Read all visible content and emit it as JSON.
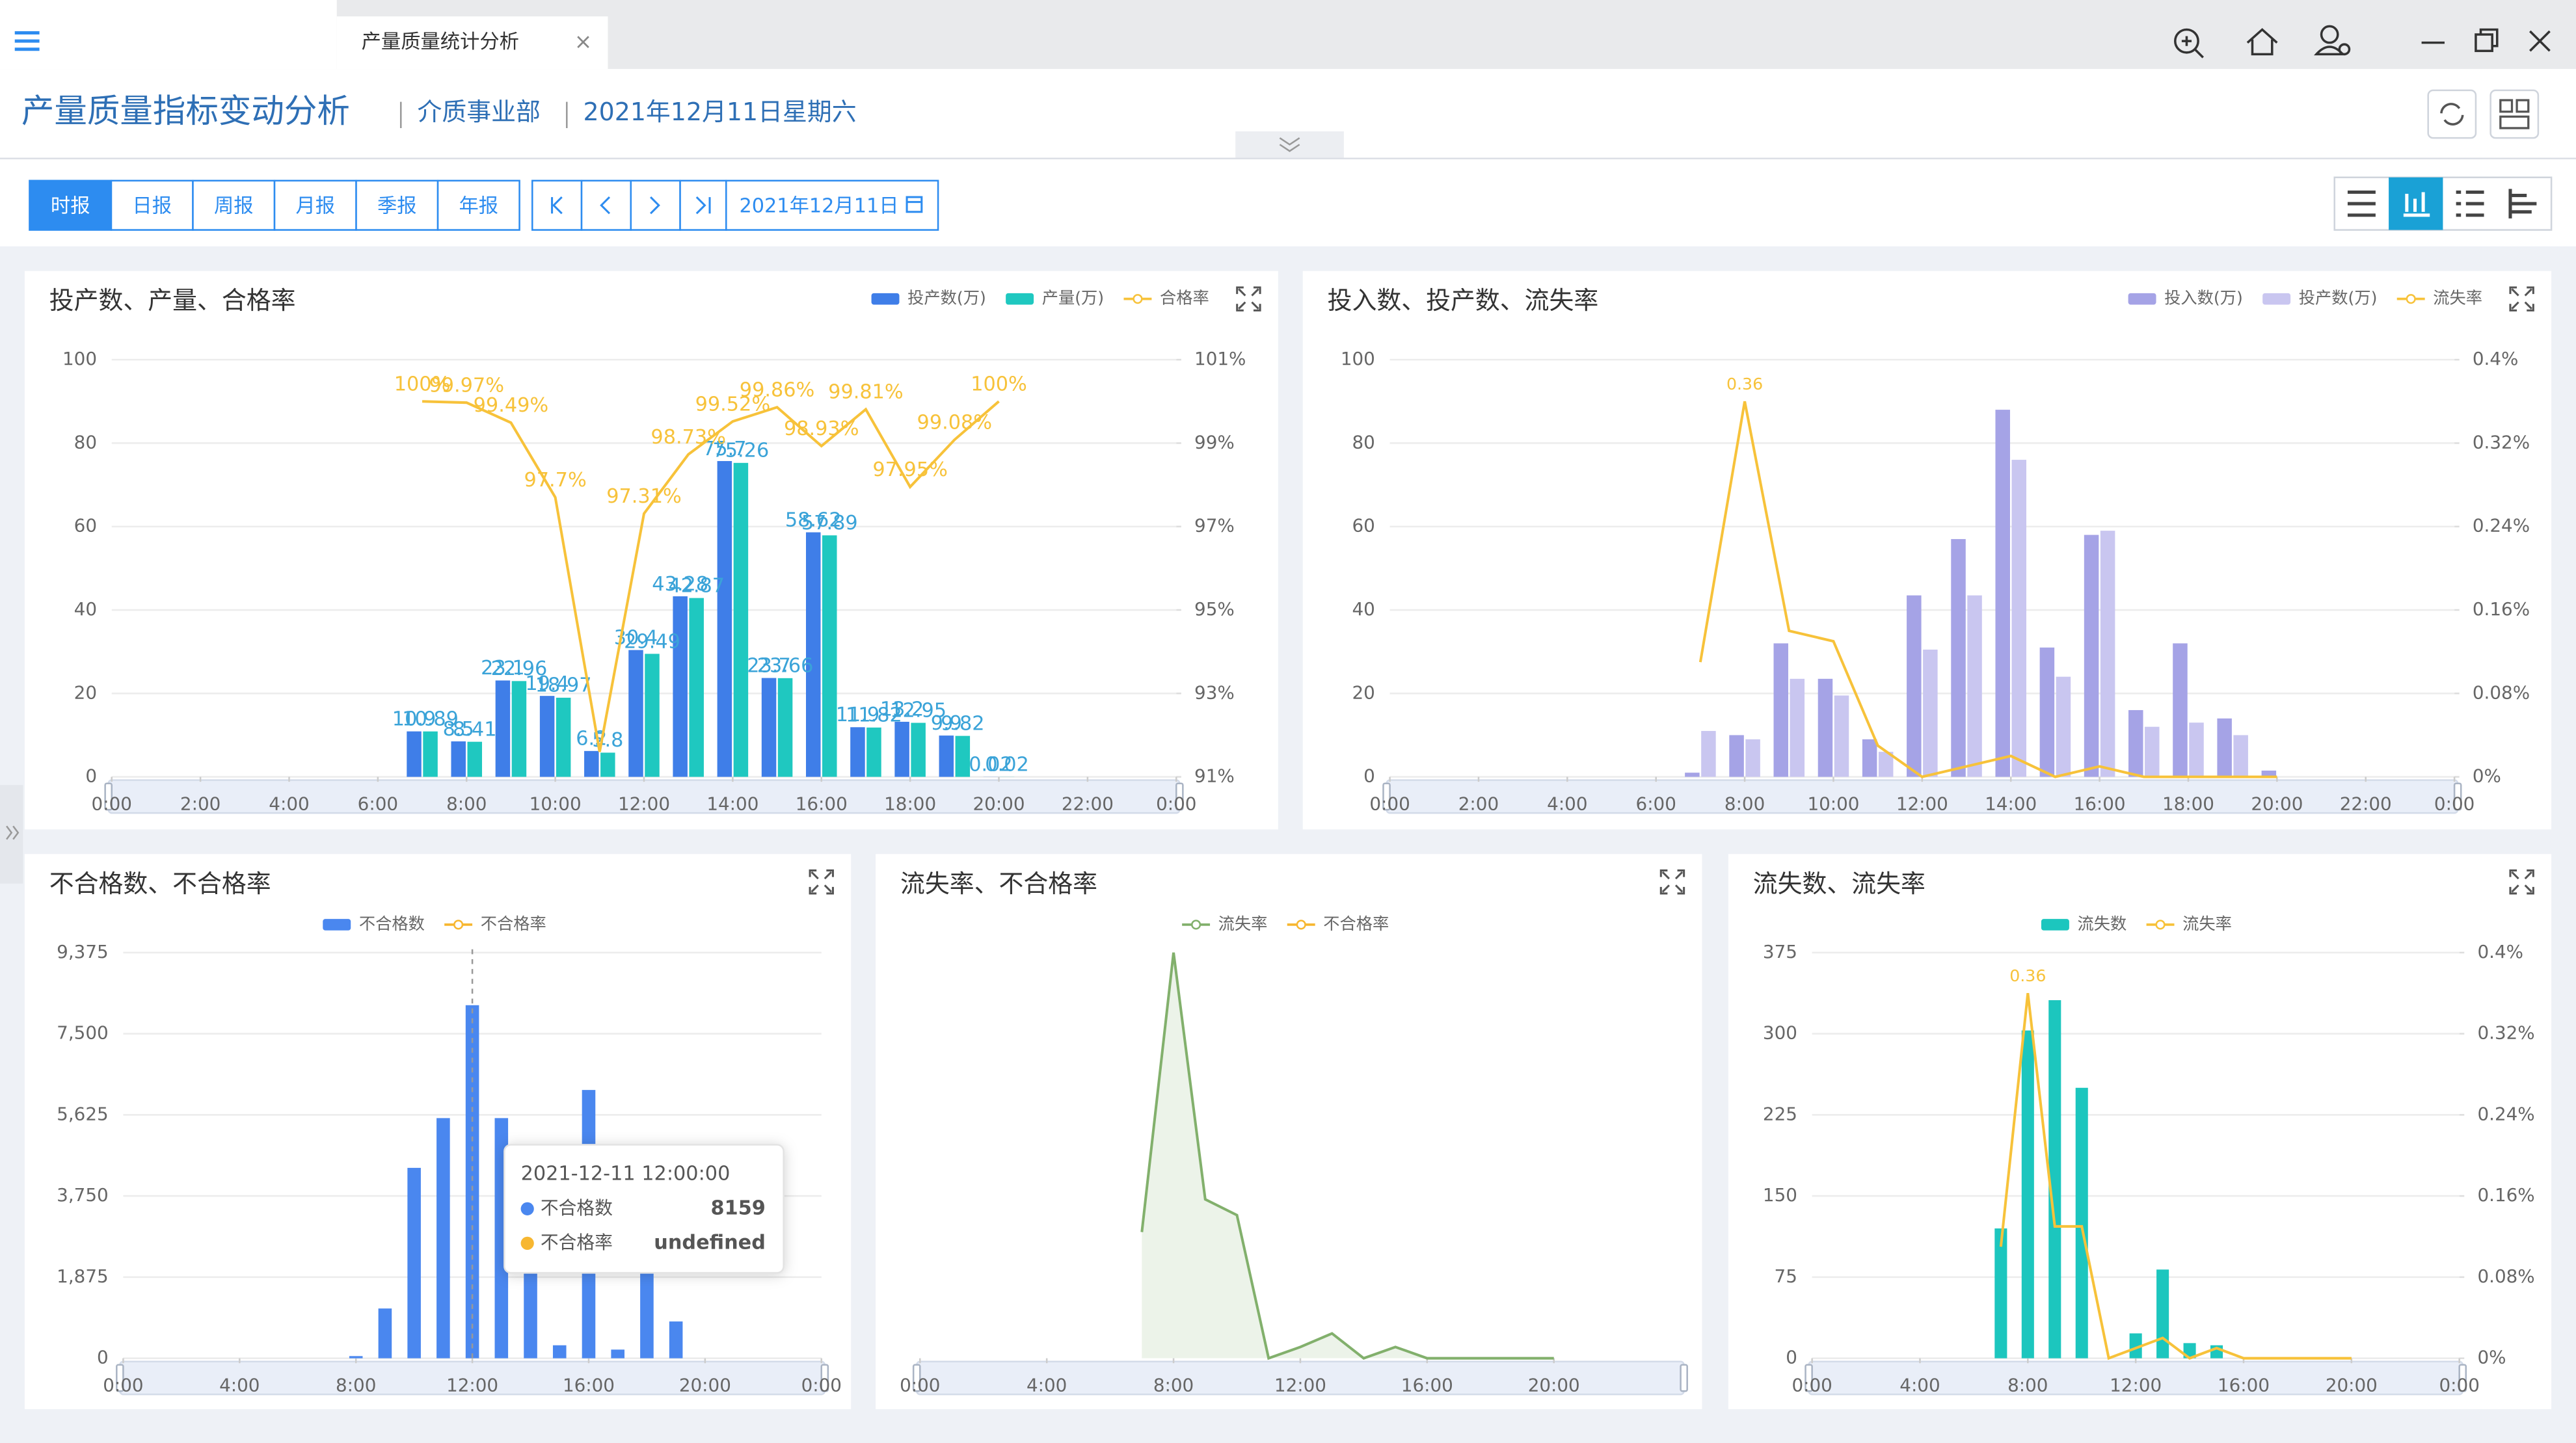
{
  "tab": {
    "title": "产量质量统计分析",
    "close": "×"
  },
  "header": {
    "title": "产量质量指标变动分析",
    "department": "介质事业部",
    "date": "2021年12月11日星期六"
  },
  "toolbar": {
    "periods": [
      "时报",
      "日报",
      "周报",
      "月报",
      "季报",
      "年报"
    ],
    "date": "2021年12月11日"
  },
  "chart_data": [
    {
      "type": "bar",
      "title": "投产数、产量、合格率",
      "legend": "top-right",
      "categories": [
        "0:00",
        null,
        "2:00",
        null,
        "4:00",
        null,
        "6:00",
        null,
        "8:00",
        null,
        "10:00",
        null,
        "12:00",
        null,
        "14:00",
        null,
        "16:00",
        null,
        "18:00",
        null,
        "20:00",
        null,
        "22:00",
        null,
        "0:00"
      ],
      "ylim": [
        0,
        100
      ],
      "yticks": [
        0,
        20,
        40,
        60,
        80,
        100
      ],
      "y2lim": [
        91,
        101
      ],
      "y2ticks": [
        {
          "value": 91,
          "label": "91%"
        },
        {
          "value": 93,
          "label": "93%"
        },
        {
          "value": 95,
          "label": "95%"
        },
        {
          "value": 97,
          "label": "97%"
        },
        {
          "value": 99,
          "label": "99%"
        },
        {
          "value": 101,
          "label": "101%"
        }
      ],
      "grid": true,
      "series": [
        {
          "name": "投产数(万)",
          "type": "bar",
          "color": "#3f7ee8",
          "labels": true,
          "values": [
            null,
            null,
            null,
            null,
            null,
            null,
            null,
            10.9,
            8.5,
            23.1,
            19.4,
            6.2,
            30.4,
            43.28,
            75.7,
            23.7,
            58.62,
            11.9,
            13.2,
            9.9,
            0.02,
            null,
            null,
            null,
            null
          ]
        },
        {
          "name": "产量(万)",
          "type": "bar",
          "color": "#1fc8c0",
          "labels": true,
          "values": [
            null,
            null,
            null,
            null,
            null,
            null,
            null,
            10.89,
            8.41,
            22.96,
            18.97,
            5.8,
            29.49,
            42.87,
            75.26,
            23.66,
            57.89,
            11.82,
            12.95,
            9.82,
            0.02,
            null,
            null,
            null,
            null
          ]
        },
        {
          "name": "合格率",
          "type": "line",
          "axis": "y2",
          "color": "#f7c23a",
          "values": [
            null,
            null,
            null,
            null,
            null,
            null,
            null,
            100,
            99.97,
            99.49,
            97.7,
            91.6,
            97.31,
            98.73,
            99.52,
            99.86,
            98.93,
            99.81,
            97.95,
            99.08,
            100,
            null,
            null,
            null,
            null
          ],
          "value_labels": [
            null,
            null,
            null,
            null,
            null,
            null,
            null,
            "100%",
            "99.97%",
            "99.49%",
            "97.7%",
            null,
            "97.31%",
            "98.73%",
            "99.52%",
            "99.86%",
            "98.93%",
            "99.81%",
            "97.95%",
            "99.08%",
            "100%",
            null,
            null,
            null,
            null
          ]
        }
      ]
    },
    {
      "type": "bar",
      "title": "投入数、投产数、流失率",
      "legend": "top-right",
      "categories": [
        "0:00",
        null,
        "2:00",
        null,
        "4:00",
        null,
        "6:00",
        null,
        "8:00",
        null,
        "10:00",
        null,
        "12:00",
        null,
        "14:00",
        null,
        "16:00",
        null,
        "18:00",
        null,
        "20:00",
        null,
        "22:00",
        null,
        "0:00"
      ],
      "ylim": [
        0,
        100
      ],
      "yticks": [
        0,
        20,
        40,
        60,
        80,
        100
      ],
      "y2lim": [
        0,
        0.4
      ],
      "y2ticks": [
        {
          "value": 0,
          "label": "0%"
        },
        {
          "value": 0.08,
          "label": "0.08%"
        },
        {
          "value": 0.16,
          "label": "0.16%"
        },
        {
          "value": 0.24,
          "label": "0.24%"
        },
        {
          "value": 0.32,
          "label": "0.32%"
        },
        {
          "value": 0.4,
          "label": "0.4%"
        }
      ],
      "grid": true,
      "series": [
        {
          "name": "投入数(万)",
          "type": "bar",
          "color": "#a5a3e6",
          "values": [
            null,
            null,
            null,
            null,
            null,
            null,
            null,
            1,
            10,
            32,
            23.5,
            9,
            43.5,
            57,
            88,
            31,
            58,
            16,
            32,
            14,
            1.5,
            null,
            null,
            null,
            null
          ]
        },
        {
          "name": "投产数(万)",
          "type": "bar",
          "color": "#c9c6f0",
          "values": [
            null,
            null,
            null,
            null,
            null,
            null,
            null,
            11,
            9,
            23.5,
            19.5,
            6,
            30.5,
            43.5,
            76,
            24,
            59,
            12,
            13,
            10,
            0,
            null,
            null,
            null,
            null
          ]
        },
        {
          "name": "流失率",
          "type": "line",
          "axis": "y2",
          "color": "#f7c23a",
          "values": [
            null,
            null,
            null,
            null,
            null,
            null,
            null,
            0.11,
            0.36,
            0.14,
            0.13,
            0.03,
            0,
            0.01,
            0.02,
            0,
            0.01,
            0,
            0,
            0,
            0,
            null,
            null,
            null,
            null
          ],
          "value_labels": [
            null,
            null,
            null,
            null,
            null,
            null,
            null,
            null,
            "0.36",
            null,
            null,
            null,
            null,
            null,
            null,
            null,
            null,
            null,
            null,
            null,
            null,
            null,
            null,
            null,
            null
          ]
        }
      ]
    },
    {
      "type": "bar",
      "title": "不合格数、不合格率",
      "legend": "top-center",
      "categories": [
        "0:00",
        null,
        null,
        null,
        "4:00",
        null,
        null,
        null,
        "8:00",
        null,
        null,
        null,
        "12:00",
        null,
        null,
        null,
        "16:00",
        null,
        null,
        null,
        "20:00",
        null,
        null,
        null,
        "0:00"
      ],
      "ylim": [
        0,
        9375
      ],
      "yticks": [
        0,
        {
          "value": 1875,
          "label": "1,875"
        },
        {
          "value": 3750,
          "label": "3,750"
        },
        {
          "value": 5625,
          "label": "5,625"
        },
        {
          "value": 7500,
          "label": "7,500"
        },
        {
          "value": 9375,
          "label": "9,375"
        }
      ],
      "grid": true,
      "series": [
        {
          "name": "不合格数",
          "type": "bar",
          "color": "#4a87ef",
          "values": [
            null,
            null,
            null,
            null,
            null,
            null,
            null,
            null,
            50,
            1150,
            4400,
            5550,
            8159,
            5550,
            3100,
            300,
            6200,
            200,
            3100,
            850,
            null,
            null,
            null,
            null,
            null
          ]
        },
        {
          "name": "不合格率",
          "type": "line",
          "color": "#f7b731",
          "values": [
            null,
            null,
            null,
            null,
            null,
            null,
            null,
            null,
            null,
            null,
            null,
            null,
            null,
            null,
            null,
            null,
            null,
            null,
            null,
            null,
            null,
            null,
            null,
            null,
            null
          ]
        }
      ],
      "tooltip": {
        "title": "2021-12-11 12:00:00",
        "missing": "undefined"
      }
    },
    {
      "type": "line",
      "title": "流失率、不合格率",
      "legend": "top-center",
      "categories": [
        "0:00",
        null,
        null,
        null,
        "4:00",
        null,
        null,
        null,
        "8:00",
        null,
        null,
        null,
        "12:00",
        null,
        null,
        null,
        "16:00",
        null,
        null,
        null,
        "20:00",
        null,
        null,
        null,
        null
      ],
      "ylim": [
        0,
        0.36
      ],
      "series": [
        {
          "name": "流失率",
          "type": "line",
          "area": true,
          "color": "#82b06c",
          "values": [
            null,
            null,
            null,
            null,
            null,
            null,
            null,
            0.112,
            0.36,
            0.141,
            0.127,
            0,
            0.01,
            0.022,
            0,
            0.01,
            0,
            0,
            0,
            0,
            0,
            null,
            null,
            null,
            null
          ]
        },
        {
          "name": "不合格率",
          "type": "line",
          "color": "#f7b731",
          "values": [
            null,
            null,
            null,
            null,
            null,
            null,
            null,
            null,
            null,
            null,
            null,
            null,
            null,
            null,
            null,
            null,
            null,
            null,
            null,
            null,
            null,
            null,
            null,
            null,
            null
          ]
        }
      ]
    },
    {
      "type": "bar",
      "title": "流失数、流失率",
      "legend": "top-center",
      "categories": [
        "0:00",
        null,
        null,
        null,
        "4:00",
        null,
        null,
        null,
        "8:00",
        null,
        null,
        null,
        "12:00",
        null,
        null,
        null,
        "16:00",
        null,
        null,
        null,
        "20:00",
        null,
        null,
        null,
        "0:00"
      ],
      "ylim": [
        0,
        375
      ],
      "yticks": [
        0,
        75,
        150,
        225,
        300,
        375
      ],
      "y2lim": [
        0,
        0.4
      ],
      "y2ticks": [
        {
          "value": 0,
          "label": "0%"
        },
        {
          "value": 0.08,
          "label": "0.08%"
        },
        {
          "value": 0.16,
          "label": "0.16%"
        },
        {
          "value": 0.24,
          "label": "0.24%"
        },
        {
          "value": 0.32,
          "label": "0.32%"
        },
        {
          "value": 0.4,
          "label": "0.4%"
        }
      ],
      "grid": true,
      "series": [
        {
          "name": "流失数",
          "type": "bar",
          "color": "#1cc6be",
          "values": [
            null,
            null,
            null,
            null,
            null,
            null,
            null,
            120,
            303,
            331,
            250,
            null,
            23,
            82,
            14,
            12,
            null,
            null,
            null,
            null,
            null,
            null,
            null,
            null,
            null
          ]
        },
        {
          "name": "流失率",
          "type": "line",
          "axis": "y2",
          "color": "#f7c23a",
          "values": [
            null,
            null,
            null,
            null,
            null,
            null,
            null,
            0.11,
            0.36,
            0.13,
            0.13,
            0,
            0.01,
            0.02,
            0,
            0.01,
            0,
            0,
            0,
            0,
            0,
            null,
            null,
            null,
            null
          ],
          "value_labels": [
            null,
            null,
            null,
            null,
            null,
            null,
            null,
            null,
            "0.36",
            null,
            null,
            null,
            null,
            null,
            null,
            null,
            null,
            null,
            null,
            null,
            null,
            null,
            null,
            null,
            null
          ]
        }
      ]
    }
  ]
}
